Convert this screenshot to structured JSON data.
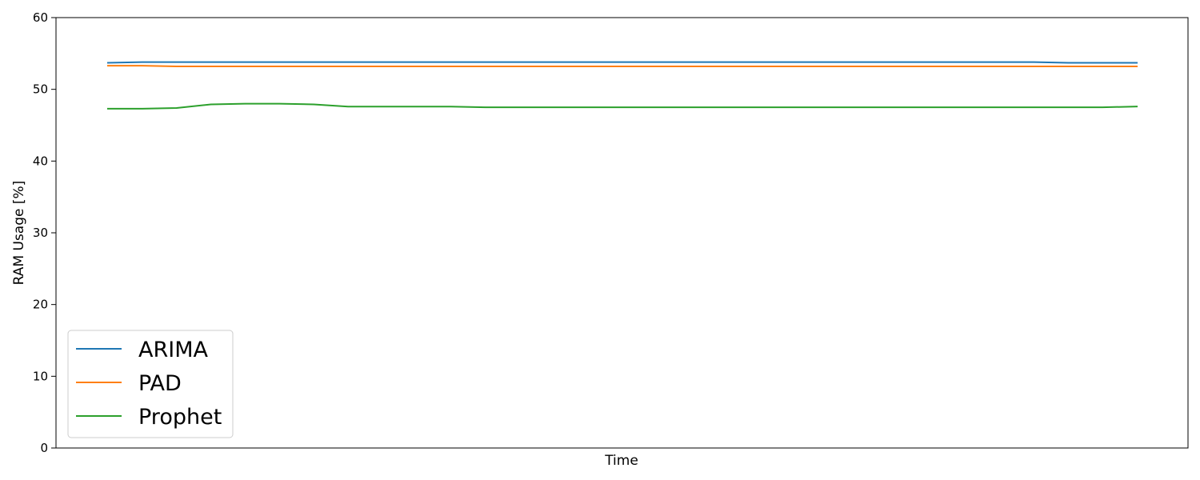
{
  "chart_data": {
    "type": "line",
    "title": "",
    "xlabel": "Time",
    "ylabel": "RAM Usage [%]",
    "ylim": [
      0,
      60
    ],
    "yticks": [
      "0",
      "10",
      "20",
      "30",
      "40",
      "50",
      "60"
    ],
    "grid": false,
    "legend_position": "lower-left",
    "x": [
      0,
      1,
      2,
      3,
      4,
      5,
      6,
      7,
      8,
      9,
      10,
      11,
      12,
      13,
      14,
      15,
      16,
      17,
      18,
      19,
      20,
      21,
      22,
      23,
      24,
      25,
      26,
      27,
      28,
      29,
      30
    ],
    "series": [
      {
        "name": "ARIMA",
        "color": "#1f77b4",
        "values": [
          53.7,
          53.8,
          53.8,
          53.8,
          53.8,
          53.8,
          53.8,
          53.8,
          53.8,
          53.8,
          53.8,
          53.8,
          53.8,
          53.8,
          53.8,
          53.8,
          53.8,
          53.8,
          53.8,
          53.8,
          53.8,
          53.8,
          53.8,
          53.8,
          53.8,
          53.8,
          53.8,
          53.8,
          53.7,
          53.7,
          53.7
        ]
      },
      {
        "name": "PAD",
        "color": "#ff7f0e",
        "values": [
          53.3,
          53.3,
          53.2,
          53.2,
          53.2,
          53.2,
          53.2,
          53.2,
          53.2,
          53.2,
          53.2,
          53.2,
          53.2,
          53.2,
          53.2,
          53.2,
          53.2,
          53.2,
          53.2,
          53.2,
          53.2,
          53.2,
          53.2,
          53.2,
          53.2,
          53.2,
          53.2,
          53.2,
          53.2,
          53.2,
          53.2
        ]
      },
      {
        "name": "Prophet",
        "color": "#2ca02c",
        "values": [
          47.3,
          47.3,
          47.4,
          47.9,
          48.0,
          48.0,
          47.9,
          47.6,
          47.6,
          47.6,
          47.6,
          47.5,
          47.5,
          47.5,
          47.5,
          47.5,
          47.5,
          47.5,
          47.5,
          47.5,
          47.5,
          47.5,
          47.5,
          47.5,
          47.5,
          47.5,
          47.5,
          47.5,
          47.5,
          47.5,
          47.6
        ]
      }
    ]
  }
}
